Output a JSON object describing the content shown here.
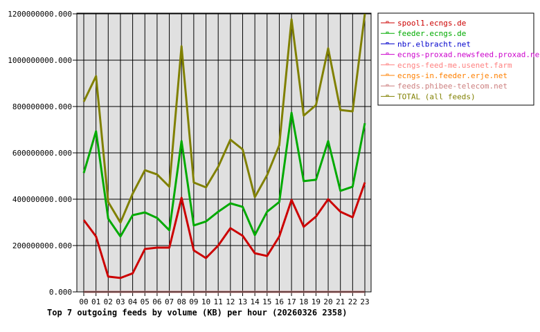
{
  "chart_data": {
    "type": "line",
    "title": "Top 7 outgoing feeds by volume (KB) per hour (20260326 2358)",
    "xlabel": "",
    "ylabel": "",
    "categories": [
      "00",
      "01",
      "02",
      "03",
      "04",
      "05",
      "06",
      "07",
      "08",
      "09",
      "10",
      "11",
      "12",
      "13",
      "14",
      "15",
      "16",
      "17",
      "18",
      "19",
      "20",
      "21",
      "22",
      "23"
    ],
    "ylim": [
      0,
      1200000000
    ],
    "yticks": [
      "0.000",
      "200000000.000",
      "400000000.000",
      "600000000.000",
      "800000000.000",
      "1000000000.000",
      "1200000000.000"
    ],
    "grid": true,
    "legend_position": "right",
    "series": [
      {
        "name": "spool1.ecngs.de",
        "color": "#cc0000",
        "values": [
          310000000,
          239000000,
          66000000,
          60000000,
          80000000,
          185000000,
          191000000,
          191000000,
          406000000,
          179000000,
          146000000,
          200000000,
          275000000,
          242000000,
          167000000,
          155000000,
          239000000,
          397000000,
          281000000,
          325000000,
          400000000,
          346000000,
          322000000,
          472000000
        ]
      },
      {
        "name": "feeder.ecngs.de",
        "color": "#00aa00",
        "values": [
          513000000,
          693000000,
          316000000,
          239000000,
          331000000,
          343000000,
          319000000,
          266000000,
          651000000,
          287000000,
          304000000,
          346000000,
          382000000,
          367000000,
          245000000,
          346000000,
          388000000,
          773000000,
          478000000,
          484000000,
          651000000,
          436000000,
          454000000,
          728000000
        ]
      },
      {
        "name": "nbr.elbracht.net",
        "color": "#0000cc",
        "values": [
          0,
          0,
          0,
          0,
          0,
          0,
          0,
          0,
          0,
          0,
          0,
          0,
          0,
          0,
          0,
          0,
          0,
          0,
          0,
          0,
          0,
          0,
          0,
          0
        ]
      },
      {
        "name": "ecngs-proxad.newsfeed.proxad.net",
        "color": "#cc00cc",
        "values": [
          0,
          0,
          0,
          0,
          0,
          0,
          0,
          0,
          0,
          0,
          0,
          0,
          0,
          0,
          0,
          0,
          0,
          0,
          0,
          0,
          0,
          0,
          0,
          0
        ]
      },
      {
        "name": "ecngs-feed-me.usenet.farm",
        "color": "#ff8080",
        "values": [
          0,
          0,
          0,
          0,
          0,
          0,
          0,
          0,
          0,
          0,
          0,
          0,
          0,
          0,
          0,
          0,
          0,
          0,
          0,
          0,
          0,
          0,
          0,
          0
        ]
      },
      {
        "name": "ecngs-in.feeder.erje.net",
        "color": "#ff8000",
        "values": [
          0,
          0,
          0,
          0,
          0,
          0,
          0,
          0,
          0,
          0,
          0,
          0,
          0,
          0,
          0,
          0,
          0,
          0,
          0,
          0,
          0,
          0,
          0,
          0
        ]
      },
      {
        "name": "feeds.phibee-telecom.net",
        "color": "#cc7f7f",
        "values": [
          0,
          0,
          0,
          0,
          0,
          0,
          0,
          0,
          0,
          0,
          0,
          0,
          0,
          0,
          0,
          0,
          0,
          0,
          0,
          0,
          0,
          0,
          0,
          0
        ]
      },
      {
        "name": "TOTAL (all feeds)",
        "color": "#808000",
        "values": [
          821000000,
          931000000,
          388000000,
          299000000,
          424000000,
          525000000,
          507000000,
          454000000,
          1060000000,
          472000000,
          451000000,
          540000000,
          657000000,
          615000000,
          409000000,
          504000000,
          633000000,
          1176000000,
          761000000,
          806000000,
          1051000000,
          785000000,
          779000000,
          1200000000
        ]
      }
    ]
  }
}
